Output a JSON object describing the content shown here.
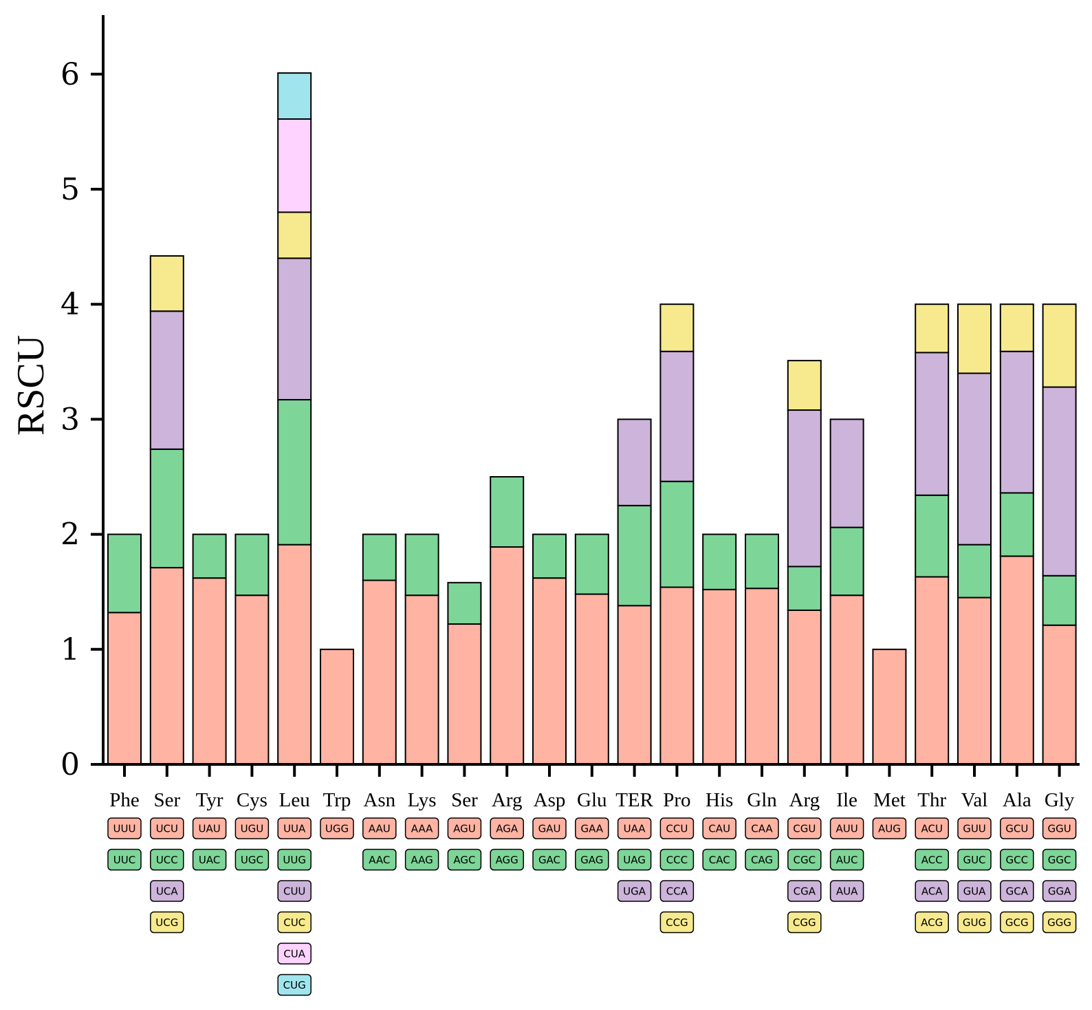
{
  "colors": {
    "slot0": "#FFB3A3",
    "slot1": "#7ED598",
    "slot2": "#CDB4DA",
    "slot3": "#F7EA8E",
    "slot4": "#FFD3FF",
    "slot5": "#A0E5EE",
    "axis": "#000000"
  },
  "chart_data": {
    "type": "bar",
    "stacked": true,
    "ylabel": "RSCU",
    "ylim": [
      0,
      6.5
    ],
    "yticks": [
      0,
      1,
      2,
      3,
      4,
      5,
      6
    ],
    "yticks_labels": [
      "0",
      "1",
      "2",
      "3",
      "4",
      "5",
      "6"
    ],
    "categories": [
      "Phe",
      "Ser",
      "Tyr",
      "Cys",
      "Leu",
      "Trp",
      "Asn",
      "Lys",
      "Ser",
      "Arg",
      "Asp",
      "Glu",
      "TER",
      "Pro",
      "His",
      "Gln",
      "Arg",
      "Ile",
      "Met",
      "Thr",
      "Val",
      "Ala",
      "Gly"
    ],
    "bars": [
      {
        "codons": [
          "UUU",
          "UUC"
        ],
        "values": [
          1.32,
          0.68
        ]
      },
      {
        "codons": [
          "UCU",
          "UCC",
          "UCA",
          "UCG"
        ],
        "values": [
          1.71,
          1.03,
          1.2,
          0.48
        ]
      },
      {
        "codons": [
          "UAU",
          "UAC"
        ],
        "values": [
          1.62,
          0.38
        ]
      },
      {
        "codons": [
          "UGU",
          "UGC"
        ],
        "values": [
          1.47,
          0.53
        ]
      },
      {
        "codons": [
          "UUA",
          "UUG",
          "CUU",
          "CUC",
          "CUA",
          "CUG"
        ],
        "values": [
          1.91,
          1.26,
          1.23,
          0.4,
          0.81,
          0.4
        ]
      },
      {
        "codons": [
          "UGG"
        ],
        "values": [
          1.0
        ]
      },
      {
        "codons": [
          "AAU",
          "AAC"
        ],
        "values": [
          1.6,
          0.4
        ]
      },
      {
        "codons": [
          "AAA",
          "AAG"
        ],
        "values": [
          1.47,
          0.53
        ]
      },
      {
        "codons": [
          "AGU",
          "AGC"
        ],
        "values": [
          1.22,
          0.36
        ]
      },
      {
        "codons": [
          "AGA",
          "AGG"
        ],
        "values": [
          1.89,
          0.61
        ]
      },
      {
        "codons": [
          "GAU",
          "GAC"
        ],
        "values": [
          1.62,
          0.38
        ]
      },
      {
        "codons": [
          "GAA",
          "GAG"
        ],
        "values": [
          1.48,
          0.52
        ]
      },
      {
        "codons": [
          "UAA",
          "UAG",
          "UGA"
        ],
        "values": [
          1.38,
          0.87,
          0.75
        ]
      },
      {
        "codons": [
          "CCU",
          "CCC",
          "CCA",
          "CCG"
        ],
        "values": [
          1.54,
          0.92,
          1.13,
          0.41
        ]
      },
      {
        "codons": [
          "CAU",
          "CAC"
        ],
        "values": [
          1.52,
          0.48
        ]
      },
      {
        "codons": [
          "CAA",
          "CAG"
        ],
        "values": [
          1.53,
          0.47
        ]
      },
      {
        "codons": [
          "CGU",
          "CGC",
          "CGA",
          "CGG"
        ],
        "values": [
          1.34,
          0.38,
          1.36,
          0.43
        ]
      },
      {
        "codons": [
          "AUU",
          "AUC",
          "AUA"
        ],
        "values": [
          1.47,
          0.59,
          0.94
        ]
      },
      {
        "codons": [
          "AUG"
        ],
        "values": [
          1.0
        ]
      },
      {
        "codons": [
          "ACU",
          "ACC",
          "ACA",
          "ACG"
        ],
        "values": [
          1.63,
          0.71,
          1.24,
          0.42
        ]
      },
      {
        "codons": [
          "GUU",
          "GUC",
          "GUA",
          "GUG"
        ],
        "values": [
          1.45,
          0.46,
          1.49,
          0.6
        ]
      },
      {
        "codons": [
          "GCU",
          "GCC",
          "GCA",
          "GCG"
        ],
        "values": [
          1.81,
          0.55,
          1.23,
          0.41
        ]
      },
      {
        "codons": [
          "GGU",
          "GGC",
          "GGA",
          "GGG"
        ],
        "values": [
          1.21,
          0.43,
          1.64,
          0.72
        ]
      }
    ]
  }
}
